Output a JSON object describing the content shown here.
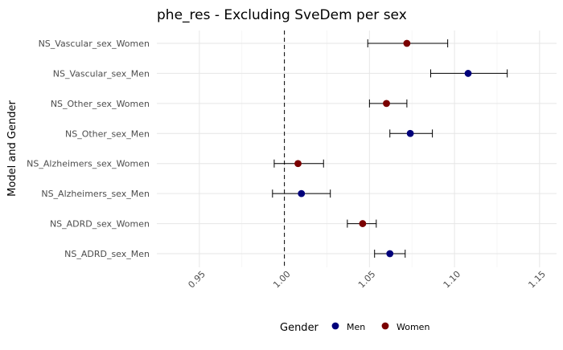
{
  "chart_data": {
    "type": "scatter",
    "title": "phe_res - Excluding SveDem per sex",
    "xlabel": "",
    "ylabel": "Model and Gender",
    "xlim": [
      0.925,
      1.16
    ],
    "x_ticks": [
      0.95,
      1.0,
      1.05,
      1.1,
      1.15
    ],
    "x_tick_labels": [
      "0.95",
      "1.00",
      "1.05",
      "1.10",
      "1.15"
    ],
    "reference_line": 1.0,
    "categories": [
      "NS_ADRD_sex_Men",
      "NS_ADRD_sex_Women",
      "NS_Alzheimers_sex_Men",
      "NS_Alzheimers_sex_Women",
      "NS_Other_sex_Men",
      "NS_Other_sex_Women",
      "NS_Vascular_sex_Men",
      "NS_Vascular_sex_Women"
    ],
    "points": [
      {
        "label": "NS_ADRD_sex_Men",
        "gender": "Men",
        "estimate": 1.062,
        "lower": 1.053,
        "upper": 1.071
      },
      {
        "label": "NS_ADRD_sex_Women",
        "gender": "Women",
        "estimate": 1.046,
        "lower": 1.037,
        "upper": 1.054
      },
      {
        "label": "NS_Alzheimers_sex_Men",
        "gender": "Men",
        "estimate": 1.01,
        "lower": 0.993,
        "upper": 1.027
      },
      {
        "label": "NS_Alzheimers_sex_Women",
        "gender": "Women",
        "estimate": 1.008,
        "lower": 0.994,
        "upper": 1.023
      },
      {
        "label": "NS_Other_sex_Men",
        "gender": "Men",
        "estimate": 1.074,
        "lower": 1.062,
        "upper": 1.087
      },
      {
        "label": "NS_Other_sex_Women",
        "gender": "Women",
        "estimate": 1.06,
        "lower": 1.05,
        "upper": 1.072
      },
      {
        "label": "NS_Vascular_sex_Men",
        "gender": "Men",
        "estimate": 1.108,
        "lower": 1.086,
        "upper": 1.131
      },
      {
        "label": "NS_Vascular_sex_Women",
        "gender": "Women",
        "estimate": 1.072,
        "lower": 1.049,
        "upper": 1.096
      }
    ],
    "legend": {
      "title": "Gender",
      "position": "bottom",
      "items": [
        {
          "name": "Men",
          "color": "#00007a"
        },
        {
          "name": "Women",
          "color": "#7a0000"
        }
      ]
    },
    "grid": true,
    "colors": {
      "Men": "#00007a",
      "Women": "#7a0000",
      "grid_major": "#e6e6e6",
      "grid_minor": "#f3f3f3",
      "text": "#4d4d4d",
      "title": "#000000"
    }
  }
}
